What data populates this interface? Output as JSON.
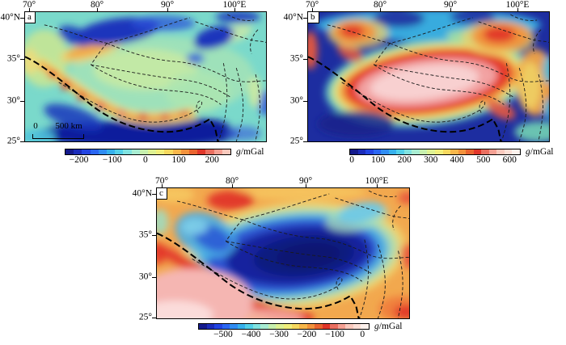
{
  "axes": {
    "top_ticks": [
      "70°",
      "80°",
      "90°",
      "100°E"
    ],
    "left_ticks": [
      "40°N",
      "35°",
      "30°",
      "25°"
    ]
  },
  "unit": {
    "italic": "g",
    "rest": "/mGal"
  },
  "panels": [
    {
      "letter": "a",
      "colorbar_ticks": [
        "−200",
        "−100",
        "0",
        "100",
        "200"
      ],
      "scalebar": {
        "zero": "0",
        "distance": "500 km"
      }
    },
    {
      "letter": "b",
      "colorbar_ticks": [
        "0",
        "100",
        "200",
        "300",
        "400",
        "500",
        "600"
      ]
    },
    {
      "letter": "c",
      "colorbar_ticks": [
        "−500",
        "−400",
        "−300",
        "−200",
        "−100",
        "0"
      ]
    }
  ],
  "palettes": {
    "palette_a": [
      "#141a8c",
      "#1b2cba",
      "#2244e2",
      "#2a66f2",
      "#2f8cf2",
      "#36b0ec",
      "#52cfe8",
      "#80e2e0",
      "#a8ecd2",
      "#c6efae",
      "#def193",
      "#f0ee7b",
      "#f6d85e",
      "#f7b64a",
      "#f2923c",
      "#e9642f",
      "#e0362a",
      "#ea6f60",
      "#f4a093",
      "#f9c9bd"
    ],
    "palette_bc": [
      "#141a8c",
      "#1b2cba",
      "#2244e2",
      "#2a66f2",
      "#2f8cf2",
      "#36b0ec",
      "#52cfe8",
      "#80e2e0",
      "#a8ecd2",
      "#c6efae",
      "#def193",
      "#f0ee7b",
      "#f6d85e",
      "#f7b64a",
      "#f2923c",
      "#e9642f",
      "#e0362a",
      "#ea6f60",
      "#f4a093",
      "#f9c9bd",
      "#fcdfd6",
      "#fdf1ec"
    ]
  },
  "colors": {
    "map_base_teal": "#7ad9cb",
    "map_base_navy": "#1d2da0",
    "map_base_orange": "#f2a84e",
    "anomaly_red": "#e23a2c",
    "anomaly_pink": "#f8d0d0",
    "deep_low_navy": "#0f1f9c",
    "fault_line": "#1a1a1a"
  }
}
